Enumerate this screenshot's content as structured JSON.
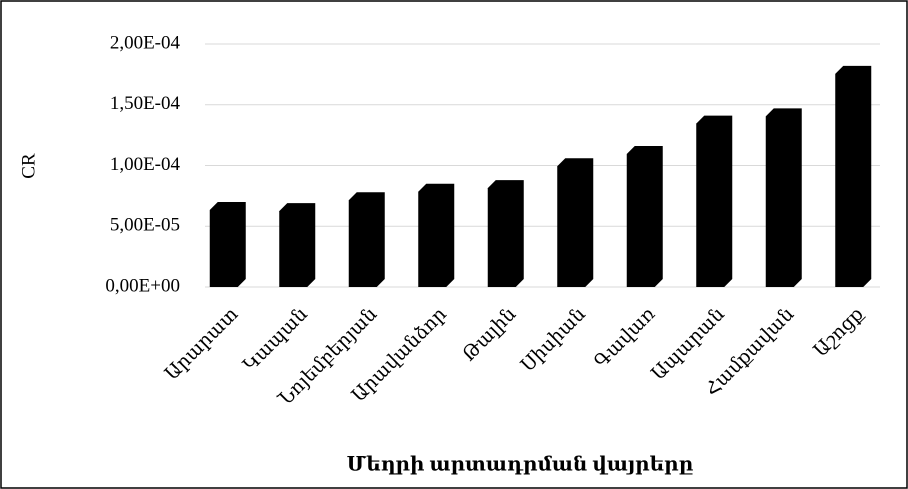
{
  "chart_data": {
    "type": "bar",
    "categories": [
      "Արարատ",
      "Կապան",
      "Նոյեմբերյան",
      "Արավանձոր",
      "Թալին",
      "Սիսիան",
      "Գավառ",
      "Ապարան",
      "Համքավան",
      "Աշոցք"
    ],
    "values": [
      7e-05,
      6.9e-05,
      7.8e-05,
      8.5e-05,
      8.8e-05,
      0.000106,
      0.000116,
      0.000141,
      0.000147,
      0.000182
    ],
    "color": "#000000",
    "ylabel": "CR",
    "xlabel": "Մեղրի արտադրման վայրերը",
    "ylim": [
      0,
      0.0002
    ],
    "yticks": [
      {
        "value": 0,
        "label": "0,00E+00"
      },
      {
        "value": 5e-05,
        "label": "5,00E-05"
      },
      {
        "value": 0.0001,
        "label": "1,00E-04"
      },
      {
        "value": 0.00015,
        "label": "1,50E-04"
      },
      {
        "value": 0.0002,
        "label": "2,00E-04"
      }
    ],
    "grid": true
  }
}
